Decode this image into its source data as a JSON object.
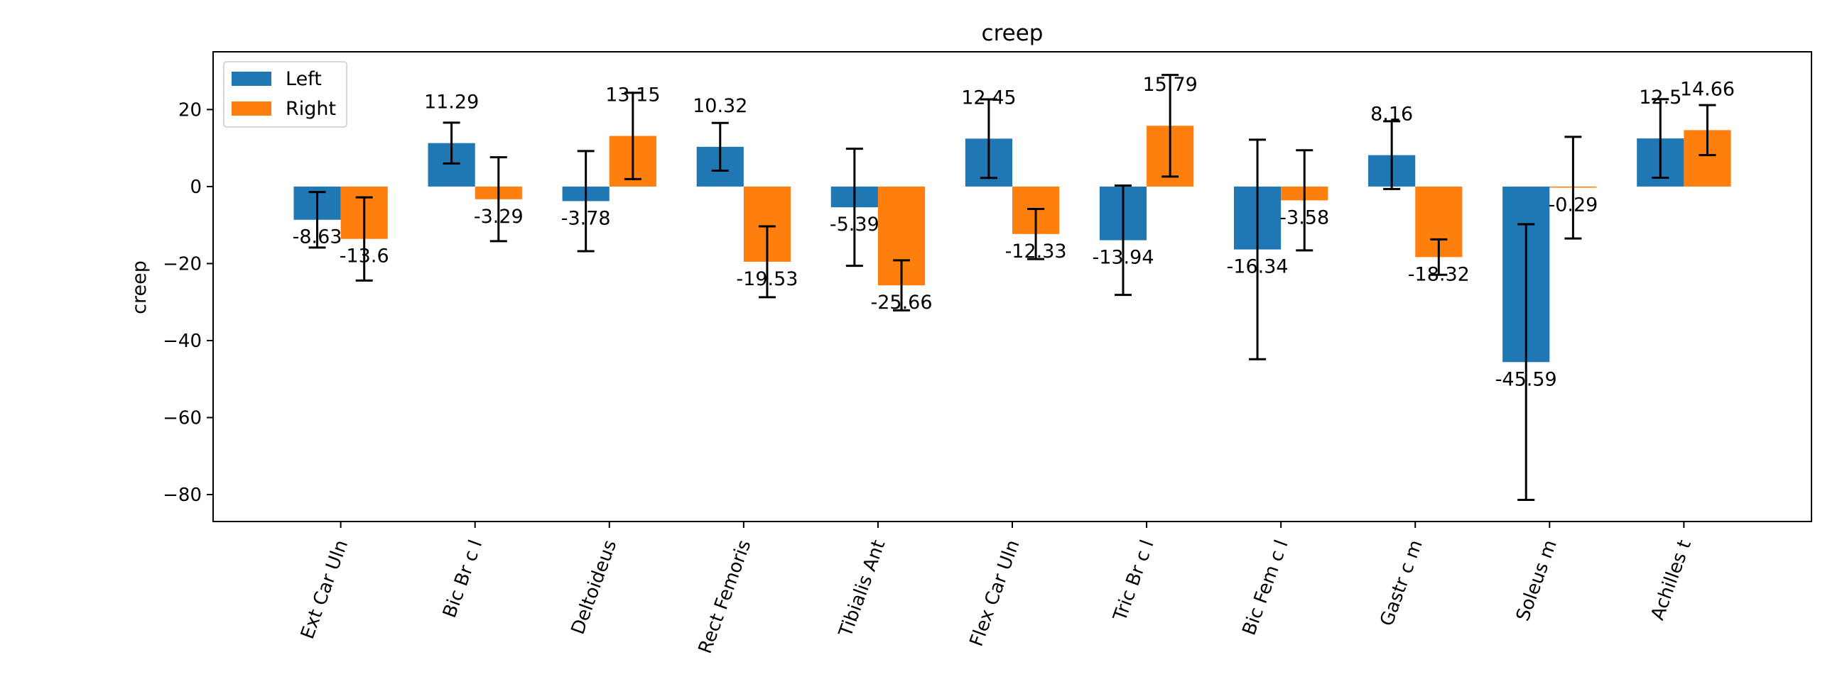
{
  "chart_data": {
    "type": "bar",
    "title": "creep",
    "xlabel": "",
    "ylabel": "creep",
    "ylim": [
      -87,
      35
    ],
    "yticks": [
      20,
      0,
      -20,
      -40,
      -60,
      -80
    ],
    "ytick_labels": [
      "20",
      "0",
      "−20",
      "−40",
      "−60",
      "−80"
    ],
    "grid": false,
    "legend_position": "top-left",
    "categories": [
      "Ext Car Uln",
      "Bic Br c l",
      "Deltoideus",
      "Rect Femoris",
      "Tibialis Ant",
      "Flex Car Uln",
      "Tric Br c l",
      "Bic Fem c l",
      "Gastr c m",
      "Soleus m",
      "Achilles t"
    ],
    "series": [
      {
        "name": "Left",
        "color": "#1f77b4",
        "values": [
          -8.63,
          11.29,
          -3.78,
          10.32,
          -5.39,
          12.45,
          -13.94,
          -16.34,
          8.16,
          -45.59,
          12.5
        ],
        "labels": [
          "-8.63",
          "11.29",
          "-3.78",
          "10.32",
          "-5.39",
          "12.45",
          "-13.94",
          "-16.34",
          "8.16",
          "-45.59",
          "12.5"
        ],
        "errors": [
          7.2,
          5.3,
          13.0,
          6.2,
          15.2,
          10.2,
          14.2,
          28.5,
          8.8,
          35.8,
          10.2
        ]
      },
      {
        "name": "Right",
        "color": "#ff7f0e",
        "values": [
          -13.6,
          -3.29,
          13.15,
          -19.53,
          -25.66,
          -12.33,
          15.79,
          -3.58,
          -18.32,
          -0.29,
          14.66
        ],
        "labels": [
          "-13.6",
          "-3.29",
          "13.15",
          "-19.53",
          "-25.66",
          "-12.33",
          "15.79",
          "-3.58",
          "-18.32",
          "-0.29",
          "14.66"
        ],
        "errors": [
          10.8,
          10.9,
          11.2,
          9.2,
          6.5,
          6.5,
          13.2,
          13.0,
          4.6,
          13.2,
          6.5
        ]
      }
    ]
  }
}
